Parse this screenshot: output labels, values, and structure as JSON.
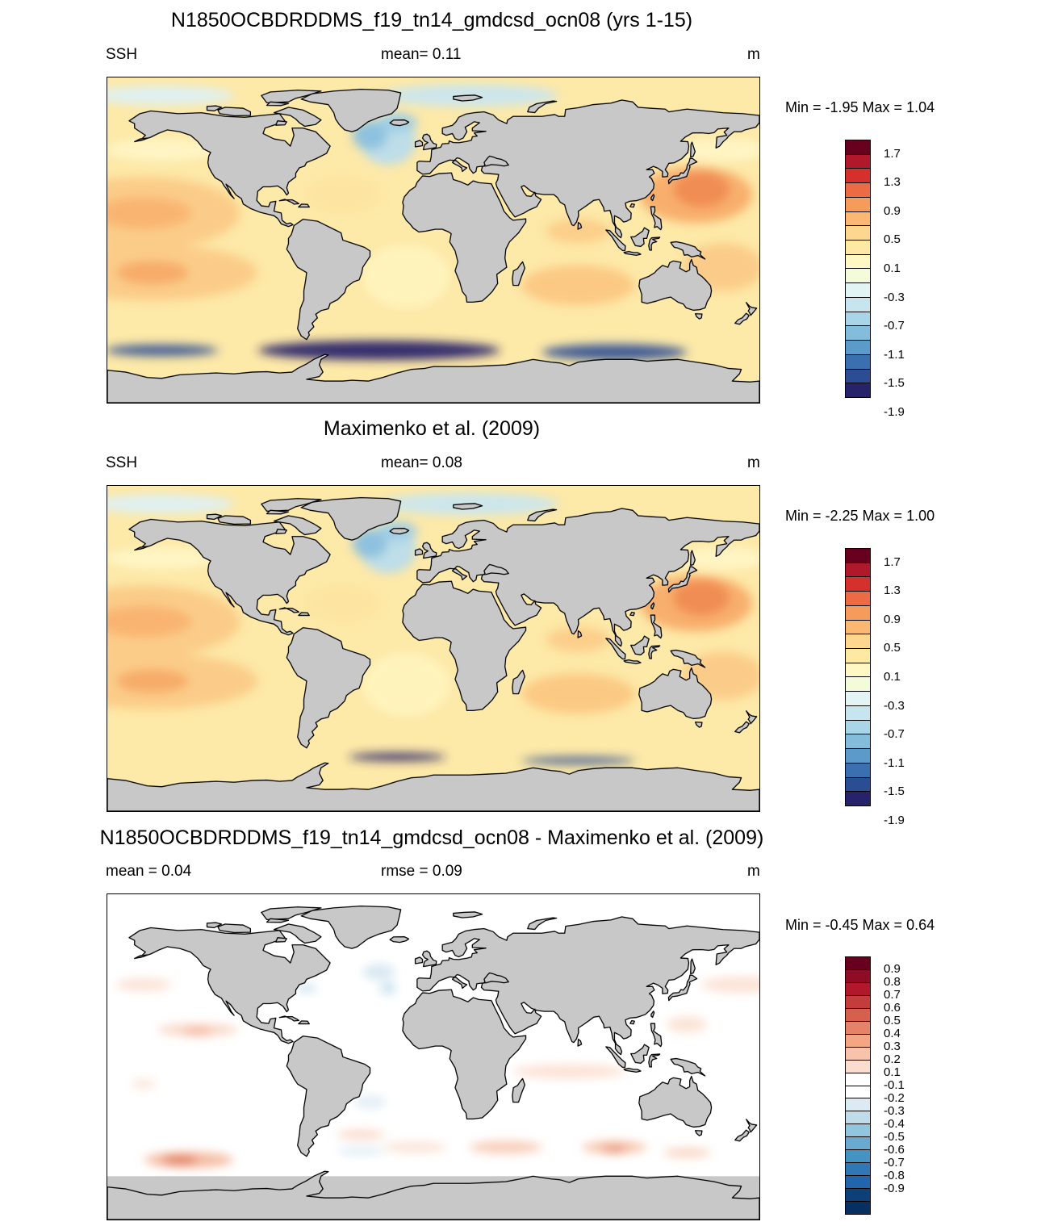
{
  "panels": [
    {
      "title": "N1850OCBDRDDMS_f19_tn14_gmdcsd_ocn08 (yrs 1-15)",
      "left_label": "SSH",
      "center_label": "mean=   0.11",
      "units": "m",
      "min_max": "Min =  -1.95 Max =    1.04",
      "colorbar": {
        "labels": [
          "1.7",
          "1.3",
          "0.9",
          "0.5",
          "0.1",
          "-0.3",
          "-0.7",
          "-1.1",
          "-1.5",
          "-1.9"
        ],
        "colors": [
          "#67001f",
          "#b2182b",
          "#d6302c",
          "#ec6b45",
          "#f59c5d",
          "#fab872",
          "#fdd690",
          "#fee9a4",
          "#fff8c4",
          "#f3fbd8",
          "#e3f4f5",
          "#c6e5ef",
          "#a8d5e7",
          "#84bcdb",
          "#5b9ac9",
          "#3a6fb0",
          "#2b4d94",
          "#27236a"
        ]
      },
      "field": "model"
    },
    {
      "title": "Maximenko et al. (2009)",
      "left_label": "SSH",
      "center_label": "mean=   0.08",
      "units": "m",
      "min_max": "Min =  -2.25 Max =    1.00",
      "colorbar": {
        "labels": [
          "1.7",
          "1.3",
          "0.9",
          "0.5",
          "0.1",
          "-0.3",
          "-0.7",
          "-1.1",
          "-1.5",
          "-1.9"
        ],
        "colors": [
          "#67001f",
          "#b2182b",
          "#d6302c",
          "#ec6b45",
          "#f59c5d",
          "#fab872",
          "#fdd690",
          "#fee9a4",
          "#fff8c4",
          "#f3fbd8",
          "#e3f4f5",
          "#c6e5ef",
          "#a8d5e7",
          "#84bcdb",
          "#5b9ac9",
          "#3a6fb0",
          "#2b4d94",
          "#27236a"
        ]
      },
      "field": "obs"
    },
    {
      "title": "N1850OCBDRDDMS_f19_tn14_gmdcsd_ocn08 - Maximenko et al. (2009)",
      "left_label": "mean =   0.04",
      "center_label": "rmse =   0.09",
      "units": "m",
      "min_max": "Min =  -0.45 Max =    0.64",
      "colorbar": {
        "labels": [
          "0.9",
          "0.8",
          "0.7",
          "0.6",
          "0.5",
          "0.4",
          "0.3",
          "0.2",
          "0.1",
          "-0.1",
          "-0.2",
          "-0.3",
          "-0.4",
          "-0.5",
          "-0.6",
          "-0.7",
          "-0.8",
          "-0.9"
        ],
        "colors": [
          "#67001f",
          "#8e0c25",
          "#b2182b",
          "#c43c3c",
          "#d6604d",
          "#e58368",
          "#f4a582",
          "#f8c3a8",
          "#fbddcd",
          "#ffffff",
          "#ffffff",
          "#dcebf3",
          "#c0dbea",
          "#92c5de",
          "#6aaad0",
          "#4393c3",
          "#2f77b5",
          "#2166ac",
          "#0d3f78",
          "#053061"
        ]
      },
      "field": "diff"
    }
  ],
  "colors": {
    "land": "#c8c8c8",
    "coast": "#000000",
    "background": "#ffffff"
  }
}
